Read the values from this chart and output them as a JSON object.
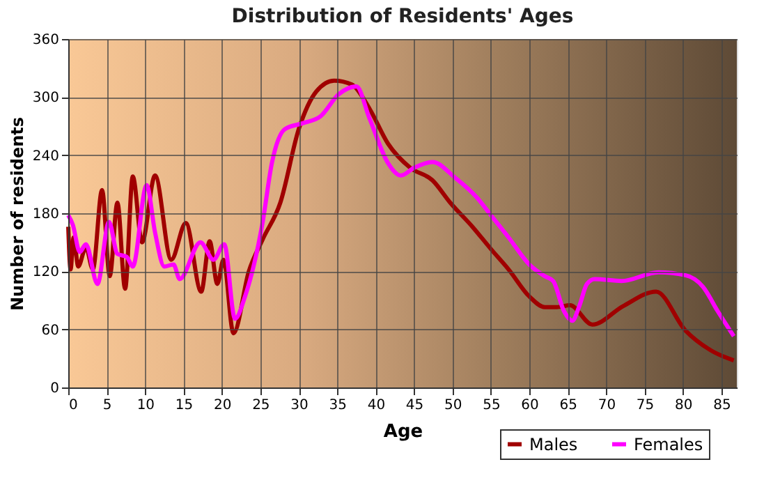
{
  "chart_data": {
    "type": "line",
    "title": "Distribution of Residents' Ages",
    "xlabel": "Age",
    "ylabel": "Number of residents",
    "xlim": [
      0,
      87
    ],
    "xticks": [
      0,
      5,
      10,
      15,
      20,
      25,
      30,
      35,
      40,
      45,
      50,
      55,
      60,
      65,
      70,
      75,
      80,
      85
    ],
    "ylim": [
      0,
      360
    ],
    "yticks": [
      0,
      60,
      120,
      180,
      240,
      300,
      360
    ],
    "grid": true,
    "legend": "bottom right",
    "marker": "none",
    "line_style": "solid",
    "series": [
      {
        "name": "Males",
        "color": "#a00000",
        "x": [
          0,
          0.3,
          0.7,
          1.3,
          2.3,
          3.2,
          4.4,
          5.4,
          6.4,
          7.4,
          8.4,
          9.6,
          11.3,
          13.4,
          15.3,
          17.3,
          18.4,
          19.4,
          20.2,
          21.5,
          23.5,
          25.3,
          27.6,
          30,
          32.3,
          34.6,
          36.9,
          39.2,
          41.6,
          44.5,
          47.4,
          49.7,
          52.6,
          55,
          57.3,
          60,
          62,
          63.6,
          65.3,
          68.2,
          72.2,
          76.5,
          80.3,
          83.7,
          86.6
        ],
        "values": [
          166,
          122,
          155,
          125,
          145,
          122,
          204,
          115,
          191,
          102,
          218,
          150,
          219,
          132,
          170,
          99,
          151,
          107,
          132,
          56,
          120,
          153,
          191,
          267,
          306,
          317,
          313,
          288,
          252,
          227,
          214,
          191,
          166,
          143,
          122,
          94,
          83,
          83,
          85,
          65,
          84,
          99,
          59,
          38,
          28
        ]
      },
      {
        "name": "Females",
        "color": "#ff00ff",
        "x": [
          0,
          0.6,
          1.5,
          2.3,
          3.8,
          5.3,
          6.4,
          7.6,
          8.4,
          10.2,
          11.3,
          12.5,
          13.7,
          14.5,
          17.2,
          18.9,
          20.3,
          21.7,
          23,
          25.3,
          26.5,
          28.2,
          30.5,
          32.8,
          35.2,
          37.5,
          39.2,
          41.6,
          43.3,
          45,
          47.4,
          50.3,
          53.2,
          55,
          57.3,
          60,
          62,
          63.1,
          64.5,
          65.6,
          66.5,
          67.5,
          68.5,
          72,
          76.8,
          80.3,
          82.6,
          84.5,
          86.6
        ],
        "values": [
          178,
          168,
          140,
          148,
          107,
          171,
          138,
          135,
          125,
          209,
          160,
          125,
          127,
          112,
          150,
          132,
          148,
          71,
          94,
          171,
          232,
          267,
          273,
          280,
          303,
          311,
          278,
          232,
          219,
          227,
          233,
          217,
          196,
          178,
          155,
          127,
          115,
          110,
          79,
          69,
          84,
          107,
          112,
          110,
          119,
          116,
          104,
          79,
          53
        ]
      }
    ]
  }
}
